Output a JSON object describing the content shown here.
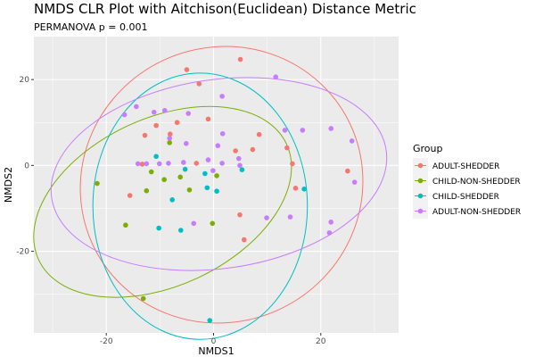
{
  "chart_data": {
    "type": "scatter",
    "title": "NMDS CLR Plot with Aitchison(Euclidean) Distance Metric",
    "subtitle": "PERMANOVA p = 0.001",
    "xlabel": "NMDS1",
    "ylabel": "NMDS2",
    "xlim": [
      -33.5,
      34.5
    ],
    "ylim": [
      -39,
      30
    ],
    "x_ticks": [
      -20,
      0,
      20
    ],
    "x_tick_labels": [
      "-20",
      "0",
      "20"
    ],
    "y_ticks": [
      -20,
      0,
      20
    ],
    "y_tick_labels": [
      "-20",
      "0",
      "20"
    ],
    "grid": true,
    "legend_title": "Group",
    "legend_position": "right",
    "series": [
      {
        "name": "ADULT-SHEDDER",
        "color": "#F8766D",
        "points": [
          [
            -5,
            22.3
          ],
          [
            -2.7,
            19
          ],
          [
            5,
            24.7
          ],
          [
            -10.7,
            9.3
          ],
          [
            -6.8,
            10
          ],
          [
            -1,
            10.8
          ],
          [
            -12.8,
            7
          ],
          [
            -8.1,
            7.3
          ],
          [
            -13.3,
            0.3
          ],
          [
            8.5,
            7.2
          ],
          [
            4.1,
            3.4
          ],
          [
            7.3,
            3.7
          ],
          [
            13.7,
            4.1
          ],
          [
            14.7,
            0.4
          ],
          [
            25,
            -1.3
          ],
          [
            -3.2,
            0.5
          ],
          [
            -15.6,
            -7
          ],
          [
            4.9,
            -11.5
          ],
          [
            15.3,
            -5.3
          ],
          [
            5.7,
            -17.3
          ]
        ],
        "ellipse": {
          "cx": 1.5,
          "cy": -4.5,
          "rx": 26.5,
          "ry": 32,
          "angle_deg": -25
        }
      },
      {
        "name": "CHILD-NON-SHEDDER",
        "color": "#7CAE00",
        "points": [
          [
            -8.2,
            5.3
          ],
          [
            -11.6,
            -1.5
          ],
          [
            -9.2,
            -3.3
          ],
          [
            -6.2,
            -2.7
          ],
          [
            0.6,
            -2.4
          ],
          [
            -4.5,
            -5.7
          ],
          [
            -12.5,
            -5.9
          ],
          [
            -16.4,
            -13.9
          ],
          [
            -0.2,
            -13.5
          ],
          [
            -21.7,
            -4.2
          ],
          [
            -13.1,
            -31
          ]
        ],
        "ellipse": {
          "cx": -9.5,
          "cy": -8.5,
          "rx": 25.5,
          "ry": 19.5,
          "angle_deg": -25
        }
      },
      {
        "name": "CHILD-SHEDDER",
        "color": "#00BFC4",
        "points": [
          [
            -10.7,
            2.1
          ],
          [
            -5.3,
            -0.9
          ],
          [
            -1.6,
            -1.9
          ],
          [
            -1.2,
            -5.2
          ],
          [
            5.3,
            -1
          ],
          [
            0.6,
            -6
          ],
          [
            -7.7,
            -8
          ],
          [
            16.9,
            -5.5
          ],
          [
            -10.2,
            -14.6
          ],
          [
            -6.1,
            -15.1
          ],
          [
            -0.7,
            -36.1
          ]
        ],
        "ellipse": {
          "cx": -2.5,
          "cy": -9.5,
          "rx": 20,
          "ry": 31,
          "angle_deg": 0
        }
      },
      {
        "name": "ADULT-NON-SHEDDER",
        "color": "#C77CFF",
        "points": [
          [
            -16.6,
            11.8
          ],
          [
            -14.4,
            13.7
          ],
          [
            -11.1,
            12.4
          ],
          [
            -9.1,
            12.8
          ],
          [
            -4.7,
            12.1
          ],
          [
            1.6,
            16.1
          ],
          [
            11.6,
            20.6
          ],
          [
            -8.2,
            6.3
          ],
          [
            -5.1,
            5.1
          ],
          [
            0.8,
            4.6
          ],
          [
            1.7,
            7.4
          ],
          [
            -14.1,
            0.4
          ],
          [
            -12.5,
            0.4
          ],
          [
            -10.1,
            0.4
          ],
          [
            -8.4,
            0.5
          ],
          [
            -5.6,
            0.7
          ],
          [
            -1,
            1.3
          ],
          [
            1.6,
            0.5
          ],
          [
            4.7,
            1.6
          ],
          [
            4.9,
            0
          ],
          [
            -0.1,
            -1.2
          ],
          [
            13.3,
            8.2
          ],
          [
            16.6,
            8.2
          ],
          [
            21.9,
            8.6
          ],
          [
            25.8,
            5.7
          ],
          [
            26.3,
            -3.9
          ],
          [
            -3.7,
            -13.5
          ],
          [
            9.9,
            -12.2
          ],
          [
            14.3,
            -12
          ],
          [
            21.9,
            -13.2
          ],
          [
            21.6,
            -15.7
          ]
        ],
        "ellipse": {
          "cx": 1,
          "cy": -2,
          "rx": 31.5,
          "ry": 22,
          "angle_deg": -8
        }
      }
    ]
  }
}
